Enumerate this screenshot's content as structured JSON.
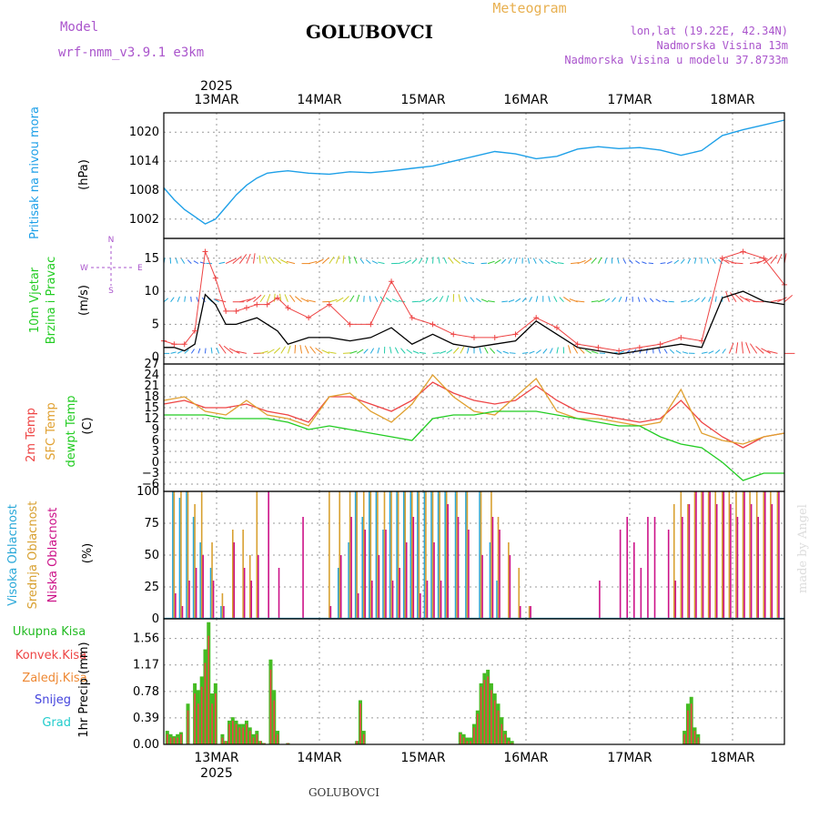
{
  "header": {
    "model_label": "Model",
    "model_value": "wrf-nmm_v3.9.1 e3km",
    "title": "GOLUBOVCI",
    "subtitle": "Meteogram",
    "lonlat": "lon,lat (19.22E, 42.34N)",
    "altitude": "Nadmorska Visina 13m",
    "model_altitude": "Nadmorska Visina u modelu 37.8733m",
    "footer_title": "GOLUBOVCI",
    "watermark": "made by Angel"
  },
  "colors": {
    "pressure": "#1ea0e8",
    "temp2m": "#ee4444",
    "sfc": "#e0a030",
    "dewpt": "#22cc22",
    "high": "#2aa8d8",
    "mid": "#d8a030",
    "low": "#cc1188",
    "precip_total": "#44bb22",
    "precip_conv": "#ee4444",
    "frozen": "#ee8833",
    "snow": "#4444dd",
    "hail": "#22cccc",
    "model": "#aa55cc"
  },
  "chart_data": {
    "type": "line",
    "year": "2025",
    "days": [
      "13MAR",
      "14MAR",
      "15MAR",
      "16MAR",
      "17MAR",
      "18MAR"
    ],
    "pressure": {
      "type": "line",
      "label": "Pritisak na nivou mora",
      "unit": "(hPa)",
      "yticks": [
        1002,
        1008,
        1014,
        1020
      ],
      "ylim": [
        998,
        1024
      ],
      "x": [
        0,
        3,
        6,
        9,
        12,
        15,
        18,
        21,
        24,
        27,
        30,
        33,
        36,
        42,
        48,
        54,
        60,
        66,
        72,
        78,
        84,
        90,
        96,
        102,
        108,
        114,
        120,
        126,
        132,
        138,
        144,
        150,
        156,
        162,
        168,
        174,
        180
      ],
      "values": [
        1008.5,
        1006,
        1004,
        1002.5,
        1001,
        1002,
        1004.5,
        1007,
        1009,
        1010.5,
        1011.5,
        1011.8,
        1012,
        1011.5,
        1011.3,
        1011.8,
        1011.6,
        1012,
        1012.5,
        1013,
        1014,
        1015,
        1016,
        1015.5,
        1014.5,
        1015,
        1016.5,
        1017,
        1016.6,
        1016.8,
        1016.3,
        1015.2,
        1016.2,
        1019.3,
        1020.5,
        1021.5,
        1022.5
      ]
    },
    "wind": {
      "type": "line",
      "label_line1": "10m Vjetar",
      "label_line2": "Brzina i Pravac",
      "unit": "(m/s)",
      "compass_n": "N",
      "compass_s": "S",
      "compass_e": "E",
      "compass_w": "W",
      "yticks": [
        0,
        5,
        10,
        15
      ],
      "ylim": [
        -1,
        18
      ],
      "x": [
        0,
        3,
        6,
        9,
        12,
        15,
        18,
        21,
        24,
        27,
        30,
        33,
        36,
        42,
        48,
        54,
        60,
        66,
        72,
        78,
        84,
        90,
        96,
        102,
        108,
        114,
        120,
        126,
        132,
        138,
        144,
        150,
        156,
        162,
        168,
        174,
        180
      ],
      "series": [
        {
          "name": "speed",
          "values": [
            1.5,
            1.5,
            1,
            2,
            9.5,
            8,
            5,
            5,
            5.5,
            6,
            5,
            4,
            2,
            3,
            3,
            2.5,
            3,
            4.5,
            2,
            3.5,
            2,
            1.5,
            2,
            2.5,
            5.5,
            3.5,
            1.5,
            1,
            0.5,
            1,
            1.5,
            2,
            1.5,
            9,
            10,
            8.5,
            8
          ]
        },
        {
          "name": "gust",
          "values": [
            2.5,
            2,
            2,
            4,
            16,
            12,
            7,
            7,
            7.5,
            8,
            8,
            9,
            7.5,
            6,
            8,
            5,
            5,
            11.5,
            6,
            5,
            3.5,
            3,
            3,
            3.5,
            6,
            4.5,
            2,
            1.5,
            1,
            1.5,
            2,
            3,
            2.5,
            15,
            16,
            15,
            11
          ]
        }
      ]
    },
    "temperature": {
      "type": "line",
      "label_t2m": "2m Temp",
      "label_sfc": "SFC Temp",
      "label_dew": "dewpt Temp",
      "unit": "(C)",
      "yticks": [
        -6,
        -3,
        0,
        3,
        6,
        9,
        12,
        15,
        18,
        21,
        24,
        27
      ],
      "ylim": [
        -8,
        27
      ],
      "x": [
        0,
        6,
        12,
        18,
        24,
        30,
        36,
        42,
        48,
        54,
        60,
        66,
        72,
        78,
        84,
        90,
        96,
        102,
        108,
        114,
        120,
        126,
        132,
        138,
        144,
        150,
        156,
        162,
        168,
        174,
        180
      ],
      "series": [
        {
          "name": "2m",
          "values": [
            16,
            17,
            15,
            15,
            16,
            14,
            13,
            11,
            18,
            18,
            16,
            14,
            17,
            22,
            19,
            17,
            16,
            17,
            21,
            17,
            14,
            13,
            12,
            11,
            12,
            17,
            11,
            7,
            4,
            7,
            8
          ]
        },
        {
          "name": "sfc",
          "values": [
            17,
            18,
            14,
            13,
            17,
            13,
            12,
            10,
            18,
            19,
            14,
            11,
            16,
            24,
            18,
            14,
            13,
            18,
            23,
            14,
            12,
            12,
            11,
            10,
            11,
            20,
            8,
            6,
            5,
            7,
            8
          ]
        },
        {
          "name": "dewpt",
          "values": [
            13,
            13,
            13,
            12,
            12,
            12,
            11,
            9,
            10,
            9,
            8,
            7,
            6,
            12,
            13,
            13,
            14,
            14,
            14,
            13,
            12,
            11,
            10,
            10,
            7,
            5,
            4,
            0,
            -5,
            -3,
            -3
          ]
        }
      ]
    },
    "cloud": {
      "type": "bar",
      "label_high": "Visoka Oblacnost",
      "label_mid": "Srednja Oblacnost",
      "label_low": "Niska Oblacnost",
      "unit": "(%)",
      "yticks": [
        0,
        25,
        50,
        75,
        100
      ],
      "ylim": [
        0,
        100
      ],
      "x": [
        3,
        5,
        7,
        9,
        11,
        14,
        17,
        20,
        23,
        25,
        27,
        30,
        33,
        36,
        38,
        40,
        45,
        48,
        51,
        54,
        56,
        58,
        60,
        62,
        64,
        66,
        68,
        70,
        72,
        74,
        76,
        78,
        80,
        82,
        85,
        88,
        92,
        95,
        97,
        100,
        103,
        106,
        108,
        113,
        118,
        120,
        126,
        132,
        134,
        136,
        138,
        140,
        142,
        146,
        148,
        150,
        152,
        154,
        156,
        158,
        160,
        162,
        164,
        166,
        168,
        170,
        172,
        174,
        176,
        178
      ],
      "series": [
        {
          "name": "high",
          "values": [
            100,
            95,
            100,
            80,
            60,
            40,
            10,
            0,
            0,
            0,
            0,
            0,
            0,
            0,
            0,
            0,
            0,
            0,
            40,
            60,
            100,
            80,
            100,
            100,
            70,
            100,
            100,
            100,
            100,
            100,
            100,
            100,
            100,
            100,
            100,
            100,
            100,
            60,
            30,
            0,
            0,
            0,
            0,
            0,
            0,
            0,
            0,
            0,
            0,
            0,
            0,
            0,
            0,
            0,
            0,
            0,
            0,
            0,
            0,
            0,
            0,
            0,
            0,
            0,
            0,
            0,
            0,
            0,
            0,
            0
          ]
        },
        {
          "name": "mid",
          "values": [
            100,
            100,
            100,
            90,
            100,
            60,
            20,
            70,
            70,
            50,
            100,
            0,
            0,
            0,
            0,
            0,
            0,
            100,
            100,
            100,
            100,
            100,
            100,
            100,
            100,
            100,
            100,
            100,
            100,
            100,
            100,
            100,
            100,
            100,
            100,
            100,
            100,
            100,
            80,
            60,
            40,
            10,
            0,
            0,
            0,
            0,
            0,
            0,
            0,
            0,
            0,
            0,
            0,
            0,
            90,
            100,
            90,
            100,
            100,
            100,
            100,
            100,
            100,
            100,
            100,
            100,
            100,
            100,
            100,
            100
          ]
        },
        {
          "name": "low",
          "values": [
            20,
            10,
            30,
            40,
            50,
            30,
            10,
            60,
            40,
            30,
            50,
            100,
            40,
            0,
            0,
            80,
            0,
            10,
            50,
            80,
            20,
            70,
            30,
            50,
            70,
            30,
            40,
            60,
            80,
            20,
            30,
            60,
            30,
            90,
            80,
            70,
            50,
            80,
            70,
            50,
            10,
            10,
            0,
            0,
            0,
            0,
            30,
            70,
            80,
            60,
            40,
            80,
            80,
            70,
            30,
            80,
            90,
            100,
            100,
            100,
            90,
            100,
            90,
            80,
            100,
            90,
            80,
            100,
            90,
            100
          ]
        }
      ]
    },
    "precip": {
      "type": "bar",
      "label_total": "Ukupna Kisa",
      "label_conv": "Konvek.Kisa",
      "label_frozen": "Zaledj.Kisa",
      "label_snow": "Snijeg",
      "label_hail": "Grad",
      "unit": "1hr Precip (mm)",
      "yticks": [
        0,
        0.39,
        0.78,
        1.17,
        1.56
      ],
      "ylim": [
        0,
        1.85
      ],
      "x": [
        1,
        2,
        3,
        4,
        5,
        7,
        9,
        10,
        11,
        12,
        13,
        14,
        15,
        17,
        18,
        19,
        20,
        21,
        22,
        23,
        24,
        25,
        26,
        27,
        28,
        29,
        31,
        32,
        33,
        36,
        56,
        57,
        58,
        86,
        87,
        88,
        89,
        90,
        91,
        92,
        93,
        94,
        95,
        96,
        97,
        98,
        99,
        100,
        101,
        151,
        152,
        153,
        154,
        155
      ],
      "series": [
        {
          "name": "total",
          "values": [
            0.2,
            0.15,
            0.12,
            0.15,
            0.18,
            0.6,
            0.9,
            0.8,
            1.0,
            1.4,
            1.8,
            0.75,
            0.9,
            0.15,
            0.05,
            0.35,
            0.4,
            0.35,
            0.3,
            0.3,
            0.35,
            0.25,
            0.15,
            0.2,
            0.05,
            0.02,
            1.25,
            0.8,
            0.2,
            0.02,
            0.05,
            0.65,
            0.2,
            0.18,
            0.15,
            0.1,
            0.1,
            0.3,
            0.5,
            0.9,
            1.05,
            1.1,
            0.9,
            0.75,
            0.6,
            0.4,
            0.2,
            0.1,
            0.05,
            0.2,
            0.6,
            0.7,
            0.25,
            0.15
          ]
        },
        {
          "name": "convective",
          "values": [
            0.15,
            0.1,
            0.1,
            0.1,
            0.15,
            0.5,
            0.75,
            0.6,
            0.85,
            1.2,
            1.6,
            0.6,
            0.75,
            0.1,
            0.05,
            0.3,
            0.35,
            0.3,
            0.25,
            0.25,
            0.3,
            0.2,
            0.1,
            0.15,
            0.05,
            0.02,
            1.1,
            0.65,
            0.15,
            0.02,
            0.05,
            0.6,
            0.15,
            0.15,
            0.1,
            0.05,
            0.05,
            0.25,
            0.45,
            0.85,
            0.95,
            1.0,
            0.8,
            0.65,
            0.5,
            0.3,
            0.15,
            0.05,
            0.02,
            0.15,
            0.5,
            0.6,
            0.2,
            0.1
          ]
        }
      ]
    }
  }
}
